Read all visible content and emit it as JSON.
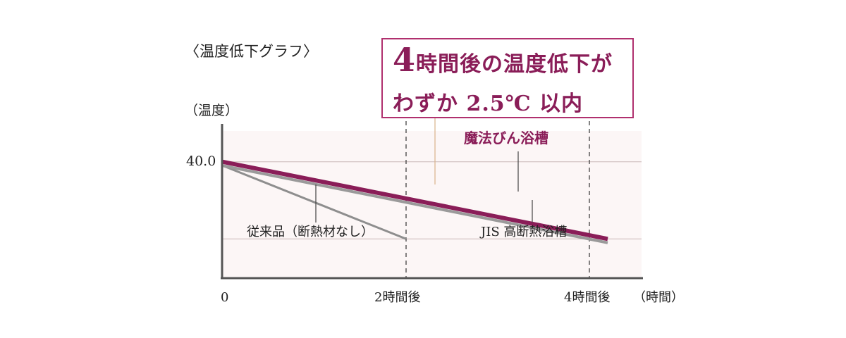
{
  "chart_data": {
    "type": "line",
    "title": "〈温度低下グラフ〉",
    "ylabel": "（温度）",
    "xlabel": "（時間）",
    "x_tick_labels": [
      "0",
      "2時間後",
      "4時間後"
    ],
    "y_tick_label": "40.0",
    "x": [
      0,
      2,
      4
    ],
    "ylim": [
      37.0,
      40.8
    ],
    "series": [
      {
        "name": "魔法びん浴槽",
        "x": [
          0,
          4.2
        ],
        "y": [
          40.0,
          38.0
        ]
      },
      {
        "name": "JIS 高断熱浴槽",
        "x": [
          0,
          4.2
        ],
        "y": [
          39.9,
          37.9
        ]
      },
      {
        "name": "従来品（断熱材なし）",
        "x": [
          0,
          2
        ],
        "y": [
          39.9,
          38.0
        ]
      }
    ],
    "gridlines_y": [
      40.0,
      38.0
    ],
    "vertical_markers_x": [
      2,
      4
    ]
  },
  "callout": {
    "number": "4",
    "line1_rest": "時間後の温度低下が",
    "line2": "わずか 2.5℃ 以内"
  },
  "colors": {
    "highlight": "#8a1d58",
    "gray_line": "#8e8e8e",
    "axis": "#555555"
  }
}
